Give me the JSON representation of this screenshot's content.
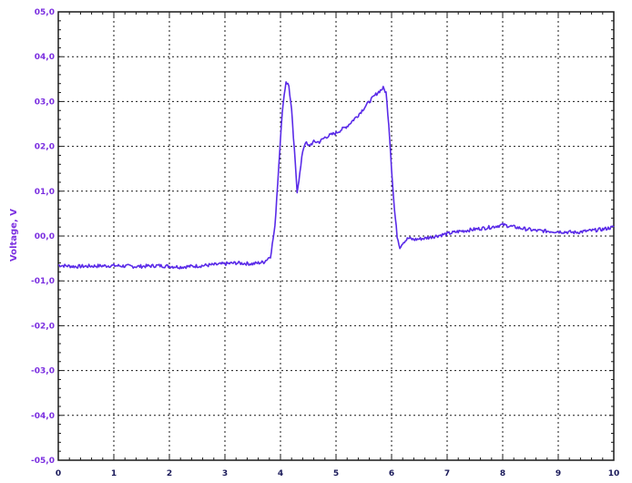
{
  "chart_data": {
    "type": "line",
    "title": "",
    "xlabel": "",
    "ylabel": "Voltage, V",
    "xlim": [
      0,
      10
    ],
    "ylim": [
      -5,
      5
    ],
    "grid": true,
    "x_ticks": [
      "0",
      "1",
      "2",
      "3",
      "4",
      "5",
      "6",
      "7",
      "8",
      "9",
      "10"
    ],
    "y_ticks": [
      "05,0",
      "04,0",
      "03,0",
      "02,0",
      "01,0",
      "00,0",
      "-01,0",
      "-02,0",
      "-03,0",
      "-04,0",
      "-05,0"
    ],
    "colors": {
      "line": "#5a2be8",
      "y_text": "#7b2fe0",
      "x_text": "#1a1a5a",
      "grid": "#1a1a1a",
      "axis": "#1a1a1a"
    },
    "series": [
      {
        "x": [
          0,
          0.3,
          0.6,
          1.0,
          1.4,
          1.8,
          2.2,
          2.6,
          2.9,
          3.2,
          3.5,
          3.7,
          3.82,
          3.9,
          3.95,
          4.0,
          4.05,
          4.1,
          4.15,
          4.2,
          4.25,
          4.3,
          4.35,
          4.4,
          4.45,
          4.5,
          4.6,
          4.7,
          4.8,
          5.0,
          5.2,
          5.4,
          5.6,
          5.75,
          5.85,
          5.9,
          5.95,
          6.0,
          6.05,
          6.1,
          6.15,
          6.2,
          6.3,
          6.4,
          6.6,
          6.8,
          7.0,
          7.2,
          7.5,
          7.8,
          8.0,
          8.3,
          8.6,
          9.0,
          9.3,
          9.6,
          9.8,
          10.0
        ],
        "y": [
          -0.65,
          -0.68,
          -0.67,
          -0.66,
          -0.68,
          -0.66,
          -0.69,
          -0.66,
          -0.63,
          -0.6,
          -0.62,
          -0.58,
          -0.45,
          0.2,
          1.2,
          2.2,
          3.0,
          3.45,
          3.35,
          2.8,
          1.9,
          1.0,
          1.4,
          1.9,
          2.1,
          2.0,
          2.1,
          2.1,
          2.2,
          2.3,
          2.45,
          2.7,
          3.0,
          3.2,
          3.3,
          3.2,
          2.5,
          1.5,
          0.6,
          0.0,
          -0.25,
          -0.15,
          -0.05,
          -0.08,
          -0.05,
          0.0,
          0.05,
          0.1,
          0.15,
          0.2,
          0.25,
          0.18,
          0.12,
          0.1,
          0.08,
          0.12,
          0.15,
          0.2
        ]
      }
    ]
  }
}
